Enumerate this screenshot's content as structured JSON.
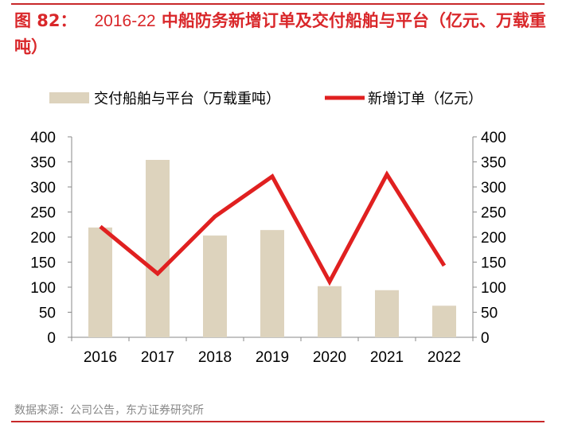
{
  "title": {
    "prefix": "图 82：",
    "years": "2016-22",
    "text": "中船防务新增订单及交付船舶与平台（亿元、万载重吨）"
  },
  "source": "数据来源：公司公告，东方证券研究所",
  "colors": {
    "bar": "#ddd3bd",
    "line": "#e02020",
    "title": "#d9272a"
  },
  "chart_data": {
    "type": "bar+line",
    "categories": [
      "2016",
      "2017",
      "2018",
      "2019",
      "2020",
      "2021",
      "2022"
    ],
    "series": [
      {
        "name": "交付船舶与平台（万载重吨）",
        "type": "bar",
        "axis": "left",
        "values": [
          219,
          354,
          203,
          214,
          102,
          94,
          63
        ]
      },
      {
        "name": "新增订单（亿元）",
        "type": "line",
        "axis": "right",
        "values": [
          221,
          127,
          241,
          321,
          111,
          325,
          143
        ]
      }
    ],
    "ylim_left": [
      0,
      400
    ],
    "ylim_right": [
      0,
      400
    ],
    "yticks": [
      0,
      50,
      100,
      150,
      200,
      250,
      300,
      350,
      400
    ],
    "legend": "top",
    "grid": false
  }
}
